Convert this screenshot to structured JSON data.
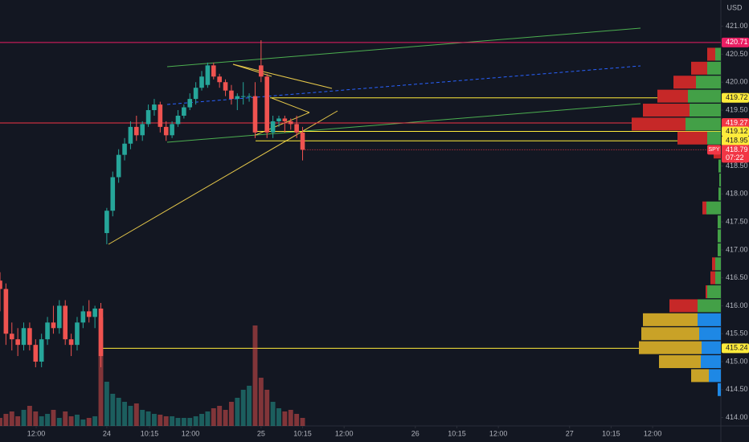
{
  "chart_data": {
    "type": "candlestick",
    "currency": "USD",
    "colors": {
      "up": "#26a69a",
      "down": "#ef5350",
      "profile_up": "#43a047",
      "profile_down": "#c62828",
      "va_up": "#1e88e5",
      "va_down": "#c9a227"
    },
    "xlim": [
      0,
      121.5
    ],
    "xticks": [
      {
        "value": 6.1,
        "label": "12:00"
      },
      {
        "value": 18,
        "label": "24"
      },
      {
        "value": 25.2,
        "label": "10:15"
      },
      {
        "value": 32.1,
        "label": "12:00"
      },
      {
        "value": 44,
        "label": "25"
      },
      {
        "value": 51,
        "label": "10:15"
      },
      {
        "value": 58,
        "label": "12:00"
      },
      {
        "value": 70,
        "label": "26"
      },
      {
        "value": 77,
        "label": "10:15"
      },
      {
        "value": 84,
        "label": "12:00"
      },
      {
        "value": 96,
        "label": "27"
      },
      {
        "value": 103,
        "label": "10:15"
      },
      {
        "value": 110,
        "label": "12:00"
      }
    ],
    "ylim": [
      413.85,
      421.47
    ],
    "yticks": [
      {
        "value": 414,
        "label": "414.00"
      },
      {
        "value": 414.5,
        "label": "414.50"
      },
      {
        "value": 415,
        "label": "415.00"
      },
      {
        "value": 415.5,
        "label": "415.50"
      },
      {
        "value": 416,
        "label": "416.00"
      },
      {
        "value": 416.5,
        "label": "416.50"
      },
      {
        "value": 417,
        "label": "417.00"
      },
      {
        "value": 417.5,
        "label": "417.50"
      },
      {
        "value": 418,
        "label": "418.00"
      },
      {
        "value": 418.5,
        "label": "418.50"
      },
      {
        "value": 419.5,
        "label": "419.50"
      },
      {
        "value": 420,
        "label": "420.00"
      },
      {
        "value": 420.5,
        "label": "420.50"
      },
      {
        "value": 421,
        "label": "421.00"
      }
    ],
    "open": [
      416.45,
      416.3,
      415.5,
      415.4,
      415.3,
      415.6,
      415.3,
      415.0,
      415.4,
      415.7,
      415.6,
      416.0,
      415.4,
      415.3,
      415.7,
      415.9,
      415.8,
      415.95,
      417.3,
      417.7,
      418.3,
      418.7,
      418.9,
      419.2,
      419.05,
      419.25,
      419.5,
      419.6,
      419.2,
      419.05,
      419.25,
      419.4,
      419.55,
      419.7,
      419.9,
      419.95,
      420.3,
      420.1,
      420.0,
      419.85,
      419.7,
      419.75,
      419.75,
      419.75,
      420.3,
      420.1,
      419.1,
      419.3,
      419.35,
      419.3,
      419.25,
      419.1
    ],
    "high": [
      416.6,
      416.4,
      415.7,
      415.6,
      415.7,
      415.7,
      415.4,
      415.5,
      415.8,
      416.0,
      416.1,
      416.1,
      415.5,
      415.8,
      416.0,
      416.1,
      416.0,
      416.05,
      417.75,
      418.4,
      418.8,
      419.0,
      419.3,
      419.4,
      419.3,
      419.6,
      419.7,
      419.65,
      419.3,
      419.3,
      419.5,
      419.6,
      419.8,
      420.0,
      420.2,
      420.35,
      420.35,
      420.15,
      420.05,
      419.95,
      419.8,
      420.0,
      419.8,
      420.0,
      420.75,
      420.15,
      419.4,
      419.4,
      419.4,
      419.35,
      419.4,
      419.2
    ],
    "low": [
      415.9,
      415.3,
      415.2,
      415.1,
      415.2,
      415.2,
      414.9,
      414.9,
      415.3,
      415.5,
      415.5,
      415.3,
      415.1,
      415.2,
      415.6,
      415.7,
      415.6,
      414.9,
      417.1,
      417.6,
      418.2,
      418.6,
      418.8,
      418.95,
      418.95,
      419.2,
      419.4,
      419.1,
      418.95,
      419.0,
      419.2,
      419.35,
      419.5,
      419.6,
      419.85,
      419.9,
      420.05,
      419.9,
      419.75,
      419.6,
      419.5,
      419.6,
      419.65,
      419.0,
      420.0,
      419.0,
      419.0,
      419.2,
      419.1,
      419.15,
      419.0,
      418.6
    ],
    "close": [
      416.3,
      415.5,
      415.4,
      415.3,
      415.6,
      415.3,
      415.0,
      415.4,
      415.7,
      415.6,
      416.0,
      415.4,
      415.3,
      415.7,
      415.9,
      415.8,
      415.95,
      415.1,
      417.7,
      418.3,
      418.7,
      418.9,
      419.2,
      419.05,
      419.25,
      419.5,
      419.6,
      419.2,
      419.05,
      419.25,
      419.4,
      419.55,
      419.7,
      419.9,
      420.1,
      420.3,
      420.1,
      420.0,
      419.85,
      419.7,
      419.75,
      419.75,
      419.75,
      419.1,
      420.1,
      419.1,
      419.3,
      419.35,
      419.3,
      419.25,
      419.1,
      418.79
    ],
    "volume": [
      10,
      15,
      18,
      12,
      20,
      25,
      18,
      12,
      15,
      20,
      10,
      18,
      12,
      14,
      8,
      10,
      12,
      135,
      55,
      40,
      35,
      30,
      25,
      28,
      20,
      18,
      15,
      14,
      12,
      12,
      10,
      10,
      10,
      12,
      15,
      18,
      22,
      25,
      20,
      30,
      35,
      45,
      50,
      125,
      60,
      45,
      30,
      22,
      18,
      20,
      15,
      10
    ],
    "profile": {
      "prices": [
        414.5,
        414.75,
        415,
        415.25,
        415.5,
        415.75,
        416,
        416.25,
        416.5,
        416.75,
        417,
        417.25,
        417.5,
        417.75,
        418,
        418.25,
        418.5,
        418.75,
        419,
        419.25,
        419.5,
        419.75,
        420,
        420.25,
        420.5
      ],
      "up": [
        4,
        15,
        25,
        24,
        27,
        29,
        29,
        17,
        7,
        7,
        4,
        4,
        4,
        18,
        3,
        2,
        3,
        0,
        17,
        44,
        39,
        41,
        31,
        17,
        7
      ],
      "down": [
        0,
        22,
        52,
        78,
        72,
        68,
        35,
        2,
        6,
        4,
        0,
        0,
        0,
        5,
        0,
        0,
        0,
        9,
        37,
        67,
        58,
        38,
        28,
        20,
        10
      ],
      "value_area": [
        414.5,
        415.75
      ]
    },
    "levels": [
      {
        "value": 420.71,
        "label": "420.71",
        "color": "#e91e63"
      },
      {
        "value": 419.72,
        "label": "419.72",
        "color": "#ffeb3b"
      },
      {
        "value": 419.27,
        "label": "419.27",
        "color": "#f23645"
      },
      {
        "value": 419.12,
        "label": "419.12",
        "color": "#ffeb3b"
      },
      {
        "value": 418.95,
        "label": "418.95",
        "color": "#ffeb3b"
      },
      {
        "value": 415.24,
        "label": "415.24",
        "color": "#ffeb3b"
      }
    ],
    "last_price": {
      "symbol": "SPY",
      "value": 418.79,
      "label": "418.79",
      "countdown": "07:22",
      "color": "#f23645"
    }
  }
}
